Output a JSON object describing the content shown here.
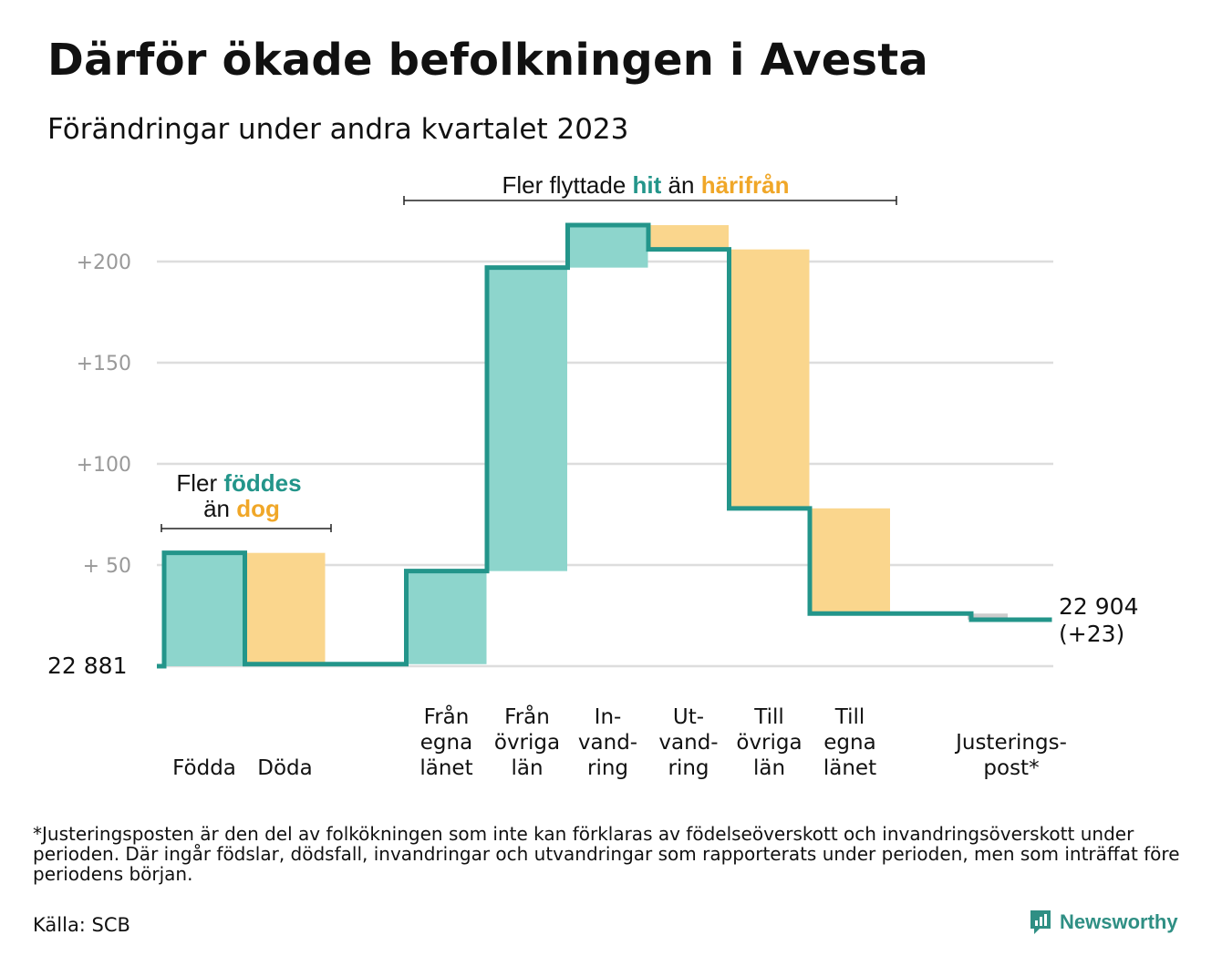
{
  "title": "Därför ökade befolkningen i Avesta",
  "subtitle": "Förändringar under andra kvartalet 2023",
  "colors": {
    "increase": "#8dd5cc",
    "decrease": "#fad68d",
    "adjustment": "#cccccc",
    "line": "#23958a",
    "teal_text": "#23958a",
    "orange_text": "#f0a728",
    "grid": "#dddddd",
    "tick": "#999999"
  },
  "chart_data": {
    "type": "waterfall",
    "base_value": 22881,
    "base_label": "22  881",
    "end_label_line1": "22 904",
    "end_label_line2": "(+23)",
    "y_ticks": [
      {
        "value": 50,
        "label": "+  50"
      },
      {
        "value": 100,
        "label": "+100"
      },
      {
        "value": 150,
        "label": "+150"
      },
      {
        "value": 200,
        "label": "+200"
      }
    ],
    "ylim": [
      0,
      218
    ],
    "steps": [
      {
        "label_lines": [
          "",
          "",
          "Födda"
        ],
        "change": 56,
        "kind": "increase"
      },
      {
        "label_lines": [
          "",
          "",
          "Döda"
        ],
        "change": -55,
        "kind": "decrease"
      },
      {
        "label_lines": [
          "",
          "",
          ""
        ],
        "change": 0,
        "kind": "gap"
      },
      {
        "label_lines": [
          "Från",
          "egna",
          "länet"
        ],
        "change": 46,
        "kind": "increase"
      },
      {
        "label_lines": [
          "Från",
          "övriga",
          "län"
        ],
        "change": 150,
        "kind": "increase"
      },
      {
        "label_lines": [
          "In-",
          "vand-",
          "ring"
        ],
        "change": 21,
        "kind": "increase"
      },
      {
        "label_lines": [
          "Ut-",
          "vand-",
          "ring"
        ],
        "change": -12,
        "kind": "decrease"
      },
      {
        "label_lines": [
          "Till",
          "övriga",
          "län"
        ],
        "change": -128,
        "kind": "decrease"
      },
      {
        "label_lines": [
          "Till",
          "egna",
          "länet"
        ],
        "change": -52,
        "kind": "decrease"
      },
      {
        "label_lines": [
          "",
          "",
          ""
        ],
        "change": 0,
        "kind": "gap"
      },
      {
        "label_lines": [
          "",
          "Justerings-",
          "post*"
        ],
        "change": -3,
        "kind": "adjustment"
      }
    ],
    "annotations": [
      {
        "id": "births",
        "parts": [
          {
            "text": "Fler ",
            "style": "plain"
          },
          {
            "text": "föddes",
            "style": "teal"
          },
          {
            "text": "än ",
            "style": "plain"
          },
          {
            "text": "dog",
            "style": "orange"
          }
        ]
      },
      {
        "id": "moves",
        "parts": [
          {
            "text": "Fler flyttade ",
            "style": "plain"
          },
          {
            "text": "hit",
            "style": "teal"
          },
          {
            "text": " än ",
            "style": "plain"
          },
          {
            "text": "härifrån",
            "style": "orange"
          }
        ]
      }
    ]
  },
  "footnote": "*Justeringsposten är den del av folkökningen som inte kan förklaras av födelseöverskott och invandringsöverskott under perioden. Där ingår födslar, dödsfall, invandringar och utvandringar som rapporterats under perioden, men som inträffat före periodens början.",
  "source": "Källa: SCB",
  "brand": {
    "name": "Newsworthy",
    "icon": "newsworthy-chart-icon"
  }
}
